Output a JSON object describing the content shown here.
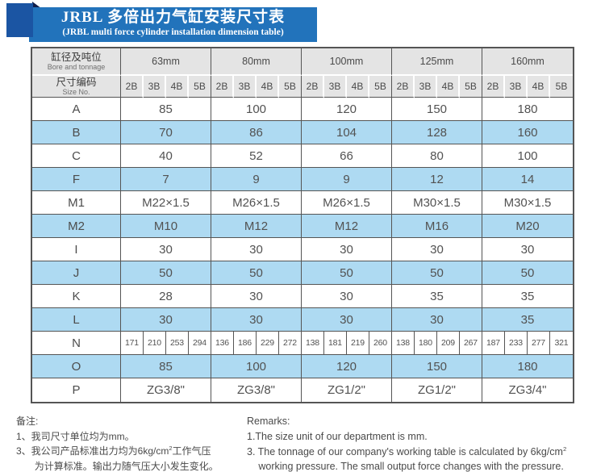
{
  "banner": {
    "title": "JRBL 多倍出力气缸安装尺寸表",
    "subtitle": "(JRBL multi force cylinder installation dimension table)"
  },
  "colors": {
    "banner_blue": "#2273bb",
    "square_blue": "#1b55a3",
    "flap_navy": "#111f4a",
    "header_gray": "#e4e4e4",
    "stripe_blue": "#aedaf2",
    "grid_dark": "#555555"
  },
  "table": {
    "corner_row1_cn": "缸径及吨位",
    "corner_row1_en": "Bore and tonnage",
    "corner_row2_cn": "尺寸编码",
    "corner_row2_en": "Size No.",
    "bore_groups": [
      "63mm",
      "80mm",
      "100mm",
      "125mm",
      "160mm"
    ],
    "size_codes": [
      "2B",
      "3B",
      "4B",
      "5B"
    ],
    "rows": [
      {
        "label": "A",
        "type": "group",
        "values": [
          "85",
          "100",
          "120",
          "150",
          "180"
        ]
      },
      {
        "label": "B",
        "type": "group",
        "values": [
          "70",
          "86",
          "104",
          "128",
          "160"
        ]
      },
      {
        "label": "C",
        "type": "group",
        "values": [
          "40",
          "52",
          "66",
          "80",
          "100"
        ]
      },
      {
        "label": "F",
        "type": "group",
        "values": [
          "7",
          "9",
          "9",
          "12",
          "14"
        ]
      },
      {
        "label": "M1",
        "type": "group",
        "values": [
          "M22×1.5",
          "M26×1.5",
          "M26×1.5",
          "M30×1.5",
          "M30×1.5"
        ]
      },
      {
        "label": "M2",
        "type": "group",
        "values": [
          "M10",
          "M12",
          "M12",
          "M16",
          "M20"
        ]
      },
      {
        "label": "I",
        "type": "group",
        "values": [
          "30",
          "30",
          "30",
          "30",
          "30"
        ]
      },
      {
        "label": "J",
        "type": "group",
        "values": [
          "50",
          "50",
          "50",
          "50",
          "50"
        ]
      },
      {
        "label": "K",
        "type": "group",
        "values": [
          "28",
          "30",
          "30",
          "35",
          "35"
        ]
      },
      {
        "label": "L",
        "type": "group",
        "values": [
          "30",
          "30",
          "30",
          "30",
          "35"
        ]
      },
      {
        "label": "N",
        "type": "sub",
        "values": [
          [
            "171",
            "210",
            "253",
            "294"
          ],
          [
            "136",
            "186",
            "229",
            "272"
          ],
          [
            "138",
            "181",
            "219",
            "260"
          ],
          [
            "138",
            "180",
            "209",
            "267"
          ],
          [
            "187",
            "233",
            "277",
            "321"
          ]
        ]
      },
      {
        "label": "O",
        "type": "group",
        "values": [
          "85",
          "100",
          "120",
          "150",
          "180"
        ]
      },
      {
        "label": "P",
        "type": "group",
        "values": [
          "ZG3/8\"",
          "ZG3/8\"",
          "ZG1/2\"",
          "ZG1/2\"",
          "ZG3/4\""
        ]
      }
    ]
  },
  "notes_cn": {
    "heading": "备注:",
    "line1": "1、我司尺寸单位均为mm。",
    "line3_prefix": "3、我公司产品标准出力均为6kg/cm",
    "line3_sup": "2",
    "line3_suffix": "工作气压",
    "line3_cont": "为计算标准。输出力随气压大小发生变化。"
  },
  "notes_en": {
    "heading": "Remarks:",
    "line1": "1.The size unit of our department is mm.",
    "line3_prefix": "3. The tonnage of our company's working table is calculated by 6kg/cm",
    "line3_sup": "2",
    "line3_cont": "working pressure. The small output force changes with the pressure."
  }
}
